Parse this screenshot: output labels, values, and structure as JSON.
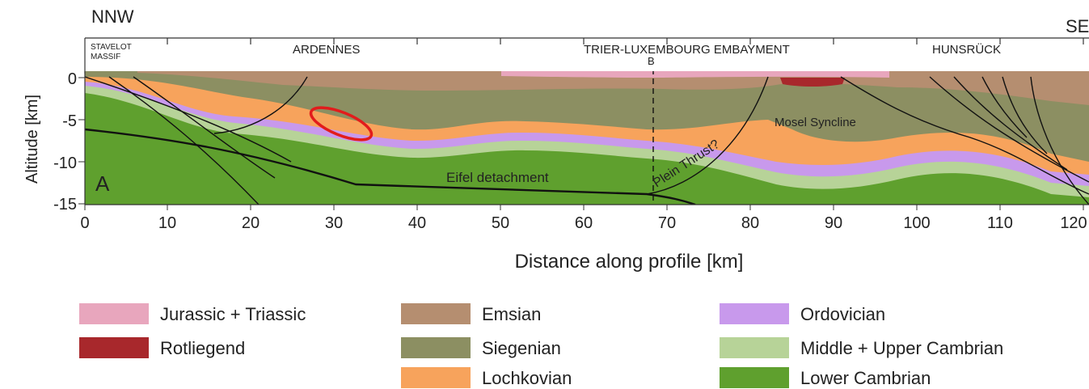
{
  "figure": {
    "direction_left": "NNW",
    "direction_right": "SE",
    "regions": [
      "STAVELOT",
      "MASSIF",
      "ARDENNES",
      "TRIER-LUXEMBOURG EMBAYMENT",
      "HUNSRÜCK"
    ],
    "profile_marker": "B",
    "panel_label": "A",
    "annotations": {
      "eifel": "Eifel detachment",
      "plein": "Plein Thrust?",
      "mosel": "Mosel Syncline"
    },
    "yaxis_label": "Altitude [km]",
    "yaxis_ticks": [
      "0",
      "-5",
      "-10",
      "-15"
    ],
    "xaxis_label": "Distance along profile [km]",
    "xaxis_ticks": [
      "0",
      "10",
      "20",
      "30",
      "40",
      "50",
      "60",
      "70",
      "80",
      "90",
      "100",
      "110",
      "120"
    ]
  },
  "colors": {
    "jurassic_triassic": "#e8a6bd",
    "rotliegend": "#a8282c",
    "emsian": "#b58e70",
    "siegenian": "#8c8f62",
    "lochkovian": "#f7a35c",
    "ordovician": "#c899ec",
    "middle_upper_cambrian": "#b7d398",
    "lower_cambrian": "#5fa02e",
    "highlight": "#e21c1c"
  },
  "legend": [
    {
      "label": "Jurassic + Triassic",
      "color": "#e8a6bd"
    },
    {
      "label": "Rotliegend",
      "color": "#a8282c"
    },
    {
      "label": "Emsian",
      "color": "#b58e70"
    },
    {
      "label": "Siegenian",
      "color": "#8c8f62"
    },
    {
      "label": "Lochkovian",
      "color": "#f7a35c"
    },
    {
      "label": "Ordovician",
      "color": "#c899ec"
    },
    {
      "label": "Middle + Upper Cambrian",
      "color": "#b7d398"
    },
    {
      "label": "Lower Cambrian",
      "color": "#5fa02e"
    }
  ]
}
